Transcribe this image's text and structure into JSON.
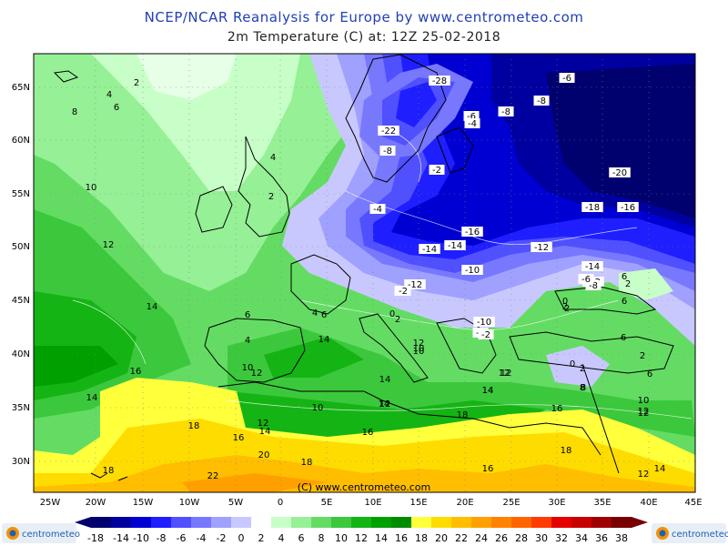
{
  "title": "NCEP/NCAR Reanalysis for Europe by www.centrometeo.com",
  "subtitle": "2m Temperature (C) at: 12Z 25-02-2018",
  "copyright": "(C) www.centrometeo.com",
  "logo_text": "centrometeo",
  "lat_labels": [
    "65N",
    "60N",
    "55N",
    "50N",
    "45N",
    "40N",
    "35N",
    "30N"
  ],
  "lon_labels": [
    "25W",
    "20W",
    "15W",
    "10W",
    "5W",
    "0",
    "5E",
    "10E",
    "15E",
    "20E",
    "25E",
    "30E",
    "35E",
    "40E",
    "45E"
  ],
  "legend_ticks": [
    "-18",
    "-14",
    "-10",
    "-8",
    "-6",
    "-4",
    "-2",
    "0",
    "2",
    "4",
    "6",
    "8",
    "10",
    "12",
    "14",
    "16",
    "18",
    "20",
    "22",
    "24",
    "26",
    "28",
    "30",
    "32",
    "34",
    "36",
    "38"
  ],
  "legend_colors": [
    "#00006e",
    "#0000a0",
    "#0000d2",
    "#1e1eff",
    "#5050ff",
    "#7878ff",
    "#a0a0ff",
    "#c8c8ff",
    "#ffffff",
    "#c8ffc8",
    "#96f096",
    "#64dc64",
    "#3cc83c",
    "#14b414",
    "#00a000",
    "#008c00",
    "#ffff3c",
    "#ffdc00",
    "#ffbe00",
    "#ffa000",
    "#ff8200",
    "#ff6400",
    "#ff3c00",
    "#e60000",
    "#c80000",
    "#a00000",
    "#780000"
  ],
  "contour_labels": [
    {
      "text": "2"
    },
    {
      "text": "4"
    },
    {
      "text": "6"
    },
    {
      "text": "8"
    },
    {
      "text": "10"
    },
    {
      "text": "12"
    },
    {
      "text": "14"
    },
    {
      "text": "16"
    },
    {
      "text": "14"
    },
    {
      "text": "18"
    },
    {
      "text": "18"
    },
    {
      "text": "22"
    },
    {
      "text": "20"
    },
    {
      "text": "18"
    },
    {
      "text": "16"
    },
    {
      "text": "14"
    },
    {
      "text": "12"
    },
    {
      "text": "10"
    },
    {
      "text": "12"
    },
    {
      "text": "14"
    },
    {
      "text": "14"
    },
    {
      "text": "14"
    },
    {
      "text": "10"
    },
    {
      "text": "12"
    },
    {
      "text": "16"
    },
    {
      "text": "18"
    },
    {
      "text": "16"
    },
    {
      "text": "18"
    },
    {
      "text": "16"
    },
    {
      "text": "14"
    },
    {
      "text": "12"
    },
    {
      "text": "12"
    },
    {
      "text": "14"
    },
    {
      "text": "10"
    },
    {
      "text": "12"
    },
    {
      "text": "6"
    },
    {
      "text": "4"
    },
    {
      "text": "6"
    },
    {
      "text": "4"
    },
    {
      "text": "6"
    },
    {
      "text": "10"
    },
    {
      "text": "12"
    },
    {
      "text": "8"
    },
    {
      "text": "6"
    },
    {
      "text": "2"
    },
    {
      "text": "0"
    },
    {
      "text": "2"
    },
    {
      "text": "2"
    },
    {
      "text": "4"
    },
    {
      "text": "-2"
    },
    {
      "text": "-4"
    },
    {
      "text": "-8"
    },
    {
      "text": "-12"
    },
    {
      "text": "-14"
    },
    {
      "text": "-14"
    },
    {
      "text": "-16"
    },
    {
      "text": "-10"
    },
    {
      "text": "-12"
    },
    {
      "text": "-14"
    },
    {
      "text": "-18"
    },
    {
      "text": "-16"
    },
    {
      "text": "-20"
    },
    {
      "text": "-6"
    },
    {
      "text": "-6"
    },
    {
      "text": "-4"
    },
    {
      "text": "-8"
    },
    {
      "text": "-8"
    },
    {
      "text": "-28"
    },
    {
      "text": "-22"
    },
    {
      "text": "-8"
    },
    {
      "text": "-2"
    },
    {
      "text": "-10"
    },
    {
      "text": "-2"
    },
    {
      "text": "-2"
    },
    {
      "text": "0"
    },
    {
      "text": "2"
    },
    {
      "text": "6"
    },
    {
      "text": "2"
    },
    {
      "text": "6"
    },
    {
      "text": "-12"
    },
    {
      "text": "-8"
    },
    {
      "text": "-6"
    },
    {
      "text": "2"
    },
    {
      "text": "8"
    },
    {
      "text": "10"
    },
    {
      "text": "12"
    },
    {
      "text": "14"
    },
    {
      "text": "12"
    },
    {
      "text": "2"
    },
    {
      "text": "0"
    }
  ]
}
